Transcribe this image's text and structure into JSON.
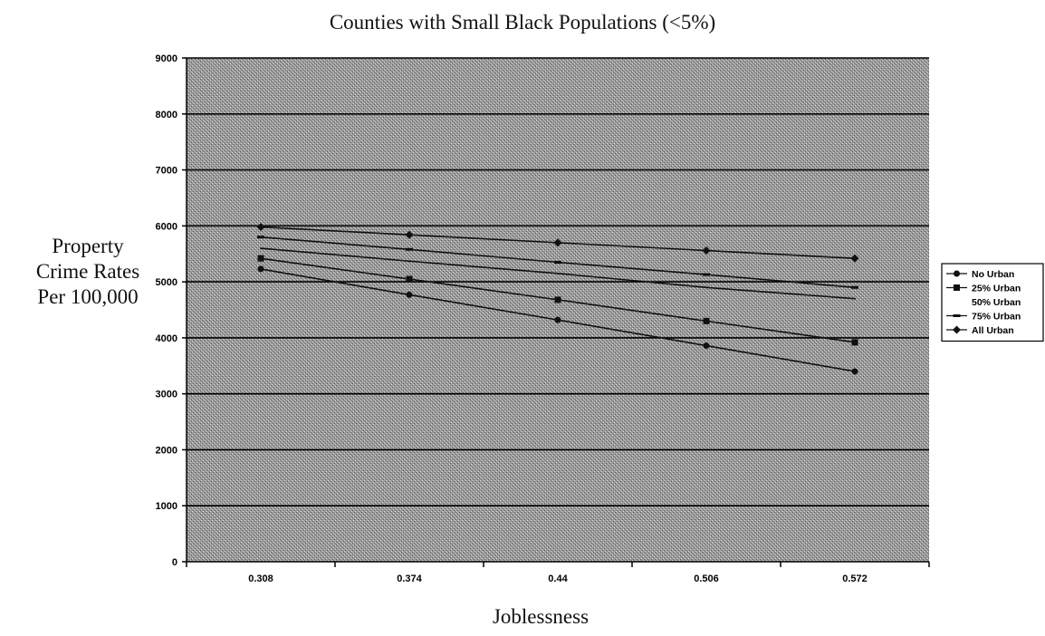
{
  "chart_data": {
    "type": "line",
    "title": "Counties with Small Black Populations (<5%)",
    "ylabel_lines": [
      "Property",
      "Crime Rates",
      "Per 100,000"
    ],
    "xlabel": "Joblessness",
    "categories": [
      "0.308",
      "0.374",
      "0.44",
      "0.506",
      "0.572"
    ],
    "yticks": [
      0,
      1000,
      2000,
      3000,
      4000,
      5000,
      6000,
      7000,
      8000,
      9000
    ],
    "ylim": [
      0,
      9000
    ],
    "grid": true,
    "legend_position": "right",
    "series": [
      {
        "name": "No Urban",
        "values": [
          5230,
          4770,
          4320,
          3860,
          3400
        ],
        "marker": "circle"
      },
      {
        "name": "25% Urban",
        "values": [
          5420,
          5050,
          4680,
          4300,
          3920
        ],
        "marker": "square"
      },
      {
        "name": "50% Urban",
        "values": [
          5600,
          5370,
          5150,
          4900,
          4700
        ],
        "marker": "none"
      },
      {
        "name": "75% Urban",
        "values": [
          5800,
          5580,
          5350,
          5130,
          4900
        ],
        "marker": "dash"
      },
      {
        "name": "All Urban",
        "values": [
          5980,
          5840,
          5700,
          5560,
          5420
        ],
        "marker": "diamond"
      }
    ]
  }
}
